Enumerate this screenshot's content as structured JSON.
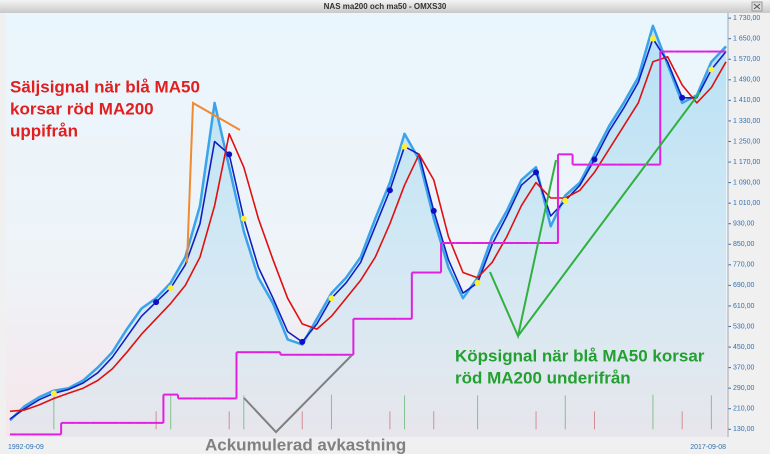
{
  "chart_data": {
    "type": "line",
    "title": "NAS ma200 och ma50 - OMXS30",
    "categories": [
      "1992-09-09",
      null,
      null,
      null,
      null,
      null,
      null,
      null,
      null,
      null,
      null,
      null,
      null,
      null,
      null,
      null,
      null,
      null,
      null,
      null,
      null,
      null,
      null,
      null,
      null,
      null,
      null,
      null,
      null,
      null,
      null,
      null,
      null,
      null,
      null,
      null,
      null,
      null,
      null,
      null,
      null,
      null,
      null,
      null,
      null,
      null,
      null,
      null,
      null,
      "2017-09-08"
    ],
    "series": [
      {
        "color": "#3aa3ea",
        "values": [
          165,
          220,
          255,
          280,
          290,
          320,
          370,
          430,
          520,
          600,
          640,
          700,
          800,
          1000,
          1400,
          1150,
          900,
          720,
          620,
          480,
          460,
          560,
          660,
          720,
          800,
          950,
          1090,
          1280,
          1180,
          950,
          760,
          640,
          720,
          880,
          980,
          1100,
          1150,
          920,
          1040,
          1090,
          1200,
          1310,
          1400,
          1500,
          1700,
          1550,
          1400,
          1430,
          1560,
          1620
        ]
      },
      {
        "color": "#1020c0",
        "values": [
          170,
          210,
          245,
          270,
          285,
          310,
          350,
          410,
          490,
          570,
          625,
          680,
          770,
          930,
          1250,
          1200,
          950,
          760,
          640,
          510,
          470,
          540,
          640,
          700,
          780,
          920,
          1060,
          1230,
          1200,
          980,
          790,
          660,
          700,
          850,
          960,
          1080,
          1130,
          960,
          1020,
          1080,
          1180,
          1290,
          1380,
          1480,
          1650,
          1560,
          1420,
          1420,
          1530,
          1600
        ]
      },
      {
        "color": "#e01010",
        "values": [
          200,
          205,
          225,
          250,
          270,
          290,
          320,
          365,
          430,
          500,
          560,
          620,
          690,
          800,
          1000,
          1280,
          1150,
          950,
          790,
          640,
          540,
          520,
          570,
          640,
          710,
          800,
          930,
          1080,
          1200,
          1100,
          880,
          740,
          720,
          780,
          880,
          1000,
          1090,
          1030,
          1030,
          1060,
          1130,
          1220,
          1310,
          1400,
          1560,
          1580,
          1470,
          1400,
          1460,
          1560
        ]
      },
      {
        "color": "#e020e0",
        "step": true,
        "values": [
          110,
          110,
          110,
          110,
          155,
          155,
          155,
          155,
          155,
          155,
          155,
          265,
          250,
          250,
          250,
          250,
          430,
          430,
          430,
          420,
          420,
          420,
          420,
          420,
          560,
          560,
          560,
          560,
          740,
          740,
          855,
          855,
          855,
          855,
          855,
          855,
          855,
          855,
          1200,
          1160,
          1160,
          1160,
          1160,
          1160,
          1160,
          1600,
          1600,
          1600,
          1600,
          1600
        ]
      }
    ],
    "signals": [
      {
        "color": "#2a9a2a",
        "dot": "#ffee33",
        "values": [
          null,
          null,
          null,
          265,
          null,
          null,
          null,
          null,
          null,
          null,
          null,
          262,
          null,
          null,
          null,
          null,
          262,
          null,
          null,
          null,
          null,
          null,
          265,
          null,
          null,
          null,
          null,
          262,
          null,
          null,
          null,
          null,
          262,
          null,
          null,
          null,
          null,
          null,
          262,
          null,
          null,
          null,
          null,
          null,
          265,
          null,
          null,
          null,
          262,
          null
        ]
      },
      {
        "color": "#d03030",
        "dot": "#1010c0",
        "values": [
          null,
          null,
          null,
          null,
          null,
          null,
          null,
          null,
          null,
          null,
          200,
          null,
          null,
          null,
          null,
          200,
          null,
          null,
          null,
          null,
          200,
          null,
          null,
          null,
          null,
          null,
          200,
          null,
          null,
          200,
          null,
          null,
          null,
          null,
          null,
          null,
          200,
          null,
          null,
          null,
          200,
          null,
          null,
          null,
          null,
          null,
          200,
          null,
          null,
          null
        ]
      }
    ],
    "ylim": [
      100,
      1750
    ],
    "yticks": [
      {
        "value": 130,
        "label": "130,00"
      },
      {
        "value": 210,
        "label": "210,00"
      },
      {
        "value": 290,
        "label": "290,00"
      },
      {
        "value": 370,
        "label": "370,00"
      },
      {
        "value": 450,
        "label": "450,00"
      },
      {
        "value": 530,
        "label": "530,00"
      },
      {
        "value": 610,
        "label": "610,00"
      },
      {
        "value": 690,
        "label": "690,00"
      },
      {
        "value": 770,
        "label": "770,00"
      },
      {
        "value": 850,
        "label": "850,00"
      },
      {
        "value": 930,
        "label": "930,00"
      },
      {
        "value": 1010,
        "label": "1 010,00"
      },
      {
        "value": 1090,
        "label": "1 090,00"
      },
      {
        "value": 1170,
        "label": "1 170,00"
      },
      {
        "value": 1250,
        "label": "1 250,00"
      },
      {
        "value": 1330,
        "label": "1 330,00"
      },
      {
        "value": 1410,
        "label": "1 410,00"
      },
      {
        "value": 1490,
        "label": "1 490,00"
      },
      {
        "value": 1570,
        "label": "1 570,00"
      },
      {
        "value": 1650,
        "label": "1 650,00"
      },
      {
        "value": 1730,
        "label": "1 730,00"
      }
    ],
    "annotations": [
      {
        "color": "#e02020",
        "lines": [
          "Säljsignal när blå MA50",
          "korsar röd MA200",
          "uppifrån"
        ]
      },
      {
        "color": "#22a030",
        "lines": [
          "Köpsignal när blå MA50 korsar",
          "röd MA200 underifrån"
        ]
      },
      {
        "color": "#808080",
        "lines": [
          "Ackumulerad avkastning"
        ]
      }
    ]
  }
}
